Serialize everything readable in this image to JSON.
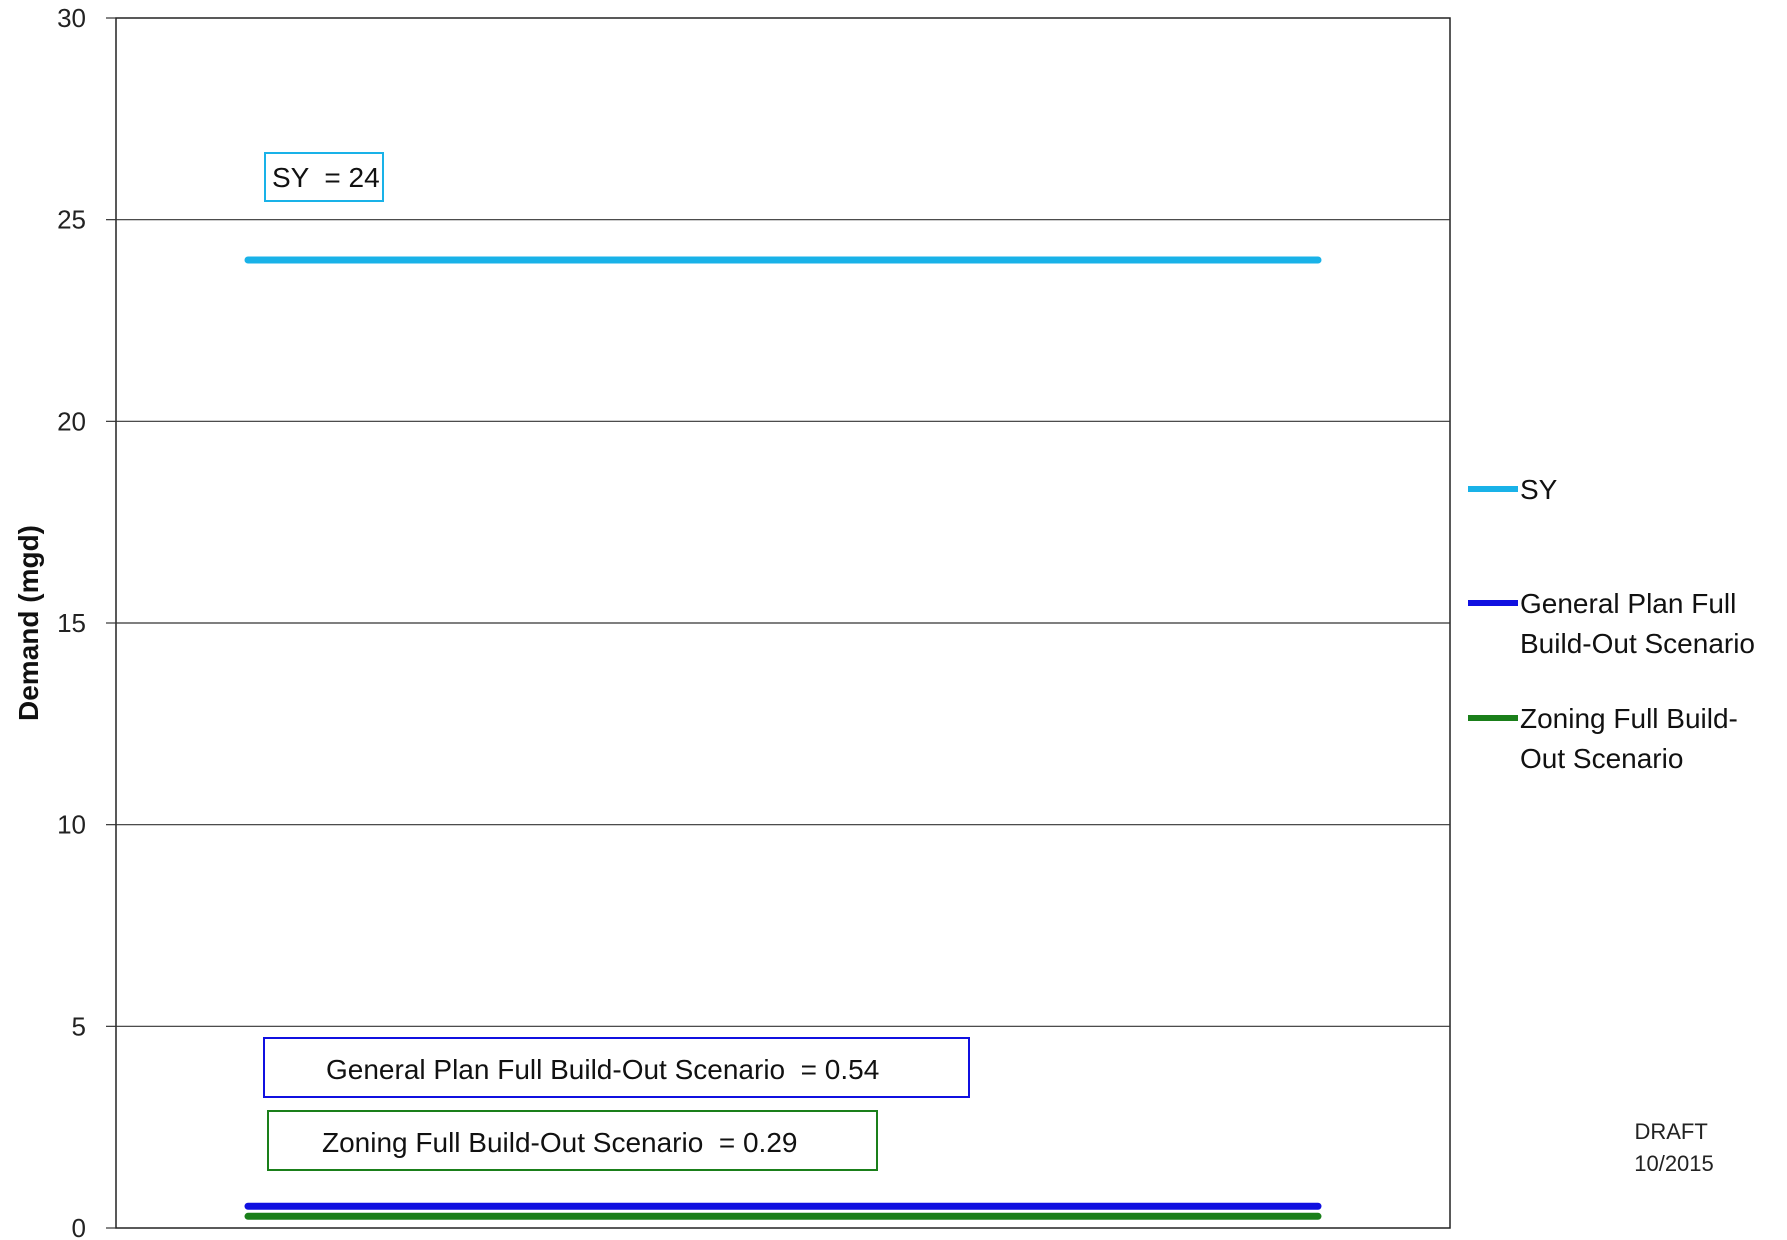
{
  "chart_data": {
    "type": "line",
    "title": "",
    "xlabel": "",
    "ylabel": "Demand (mgd)",
    "ylim": [
      0,
      30
    ],
    "yticks": [
      0,
      5,
      10,
      15,
      20,
      25,
      30
    ],
    "grid": true,
    "legend_position": "right",
    "series": [
      {
        "name": "SY",
        "value": 24,
        "color": "#19b2e8"
      },
      {
        "name": "General Plan Full Build-Out Scenario",
        "value": 0.54,
        "color": "#1010e0"
      },
      {
        "name": "Zoning Full Build-Out Scenario",
        "value": 0.29,
        "color": "#1a7f1a"
      }
    ],
    "legend": [
      {
        "lines": [
          "SY"
        ],
        "color": "#19b2e8"
      },
      {
        "lines": [
          "General Plan Full",
          "Build-Out Scenario"
        ],
        "color": "#1010e0"
      },
      {
        "lines": [
          "Zoning Full Build-",
          "Out Scenario"
        ],
        "color": "#1a7f1a"
      }
    ],
    "annotations": [
      {
        "text": "SY  = 24",
        "border": "#19b2e8"
      },
      {
        "text": "General Plan Full Build-Out Scenario  = 0.54",
        "border": "#1010e0"
      },
      {
        "text": "Zoning Full Build-Out Scenario  = 0.29",
        "border": "#1a7f1a"
      }
    ],
    "stamp": [
      "DRAFT",
      "10/2015"
    ]
  }
}
